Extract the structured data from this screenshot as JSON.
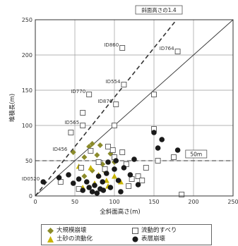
{
  "chart_data": {
    "type": "scatter",
    "xlabel": "全斜面高さ(m)",
    "ylabel": "堆積長(m)",
    "xlim": [
      0,
      250
    ],
    "ylim": [
      0,
      250
    ],
    "x_ticks": [
      "0",
      "50",
      "100",
      "150",
      "200",
      "250"
    ],
    "y_ticks": [
      "0",
      "50",
      "100",
      "150",
      "200",
      "250"
    ],
    "grid": true,
    "reference_lines": [
      {
        "label": "斜面高さの1.4",
        "slope": 1.4,
        "style": "dashed"
      },
      {
        "label": "",
        "slope": 1.0,
        "style": "solid"
      },
      {
        "label": "50m",
        "y": 50,
        "style": "dashed"
      }
    ],
    "series": [
      {
        "name": "大規模崩壊",
        "marker": "diamond",
        "color": "#8b8b2a",
        "points": [
          [
            48,
            62
          ],
          [
            62,
            55
          ],
          [
            68,
            70
          ],
          [
            72,
            74
          ],
          [
            78,
            58
          ],
          [
            82,
            72
          ],
          [
            85,
            45
          ],
          [
            88,
            35
          ],
          [
            72,
            36
          ],
          [
            62,
            28
          ],
          [
            95,
            60
          ],
          [
            100,
            48
          ]
        ]
      },
      {
        "name": "土砂の流動化",
        "marker": "triangle",
        "color": "#c8b400",
        "points": [
          [
            55,
            42
          ],
          [
            70,
            40
          ],
          [
            80,
            30
          ],
          [
            90,
            22
          ],
          [
            100,
            28
          ],
          [
            108,
            20
          ],
          [
            92,
            14
          ],
          [
            75,
            18
          ],
          [
            60,
            12
          ]
        ]
      },
      {
        "name": "流動的すべり",
        "marker": "square-open",
        "color": "#555555",
        "points": [
          [
            110,
            210
          ],
          [
            180,
            205
          ],
          [
            112,
            158
          ],
          [
            68,
            144
          ],
          [
            102,
            130
          ],
          [
            150,
            144
          ],
          [
            60,
            118
          ],
          [
            100,
            100
          ],
          [
            150,
            95
          ],
          [
            92,
            70
          ],
          [
            80,
            48
          ],
          [
            100,
            55
          ],
          [
            88,
            38
          ],
          [
            115,
            45
          ],
          [
            58,
            40
          ],
          [
            140,
            40
          ],
          [
            130,
            28
          ],
          [
            118,
            14
          ],
          [
            155,
            50
          ],
          [
            175,
            55
          ],
          [
            32,
            20
          ],
          [
            55,
            10
          ],
          [
            185,
            2
          ],
          [
            70,
            64
          ],
          [
            135,
            22
          ],
          [
            122,
            24
          ],
          [
            110,
            62
          ],
          [
            98,
            65
          ],
          [
            60,
            100
          ],
          [
            45,
            90
          ]
        ]
      },
      {
        "name": "表層崩壊",
        "marker": "circle-filled",
        "color": "#1a1a1a",
        "points": [
          [
            10,
            20
          ],
          [
            30,
            26
          ],
          [
            42,
            30
          ],
          [
            48,
            18
          ],
          [
            55,
            24
          ],
          [
            60,
            8
          ],
          [
            65,
            20
          ],
          [
            68,
            12
          ],
          [
            72,
            6
          ],
          [
            75,
            15
          ],
          [
            80,
            28
          ],
          [
            82,
            10
          ],
          [
            85,
            20
          ],
          [
            90,
            32
          ],
          [
            95,
            12
          ],
          [
            100,
            38
          ],
          [
            102,
            50
          ],
          [
            105,
            22
          ],
          [
            108,
            6
          ],
          [
            112,
            40
          ],
          [
            120,
            30
          ],
          [
            125,
            52
          ],
          [
            130,
            16
          ],
          [
            150,
            90
          ],
          [
            155,
            68
          ],
          [
            160,
            80
          ],
          [
            180,
            65
          ],
          [
            92,
            48
          ],
          [
            86,
            8
          ],
          [
            78,
            4
          ]
        ]
      }
    ],
    "annotations": [
      {
        "text": "ID860",
        "x": 110,
        "y": 210
      },
      {
        "text": "ID764",
        "x": 180,
        "y": 205
      },
      {
        "text": "ID554",
        "x": 112,
        "y": 158
      },
      {
        "text": "ID770",
        "x": 68,
        "y": 144
      },
      {
        "text": "ID876",
        "x": 102,
        "y": 130
      },
      {
        "text": "ID565",
        "x": 60,
        "y": 100
      },
      {
        "text": "ID456",
        "x": 45,
        "y": 62
      },
      {
        "text": "ID0520",
        "x": 10,
        "y": 20
      }
    ]
  }
}
